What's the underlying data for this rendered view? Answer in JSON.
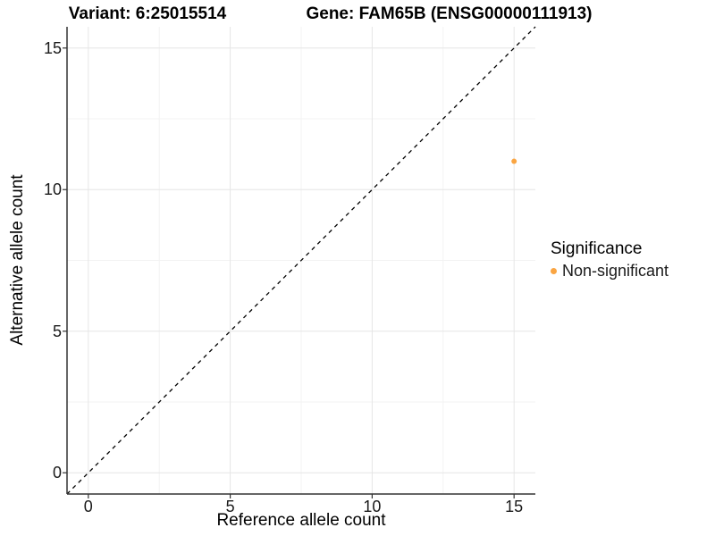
{
  "titles": {
    "variant": "Variant: 6:25015514",
    "gene": "Gene: FAM65B (ENSG00000111913)"
  },
  "axes": {
    "x": {
      "label": "Reference allele count",
      "tick_labels": [
        "0",
        "5",
        "10",
        "15"
      ]
    },
    "y": {
      "label": "Alternative allele count",
      "tick_labels": [
        "0",
        "5",
        "10",
        "15"
      ]
    }
  },
  "legend": {
    "title": "Significance",
    "items": [
      {
        "label": "Non-significant",
        "color": "#FAA542",
        "marker": "legend-point-icon"
      }
    ]
  },
  "colors": {
    "background": "#ffffff",
    "axis_line": "#333333",
    "tick_text": "#1a1a1a",
    "grid_major": "#e6e6e6",
    "grid_minor": "#f3f3f3",
    "reference_line": "#000000",
    "point_nonsignificant": "#FAA542"
  },
  "chart_data": {
    "type": "scatter",
    "title": "Variant: 6:25015514 — Gene: FAM65B (ENSG00000111913)",
    "xlabel": "Reference allele count",
    "ylabel": "Alternative allele count",
    "xlim": [
      -0.75,
      15.75
    ],
    "ylim": [
      -0.75,
      15.75
    ],
    "x_ticks": [
      0,
      5,
      10,
      15
    ],
    "y_ticks": [
      0,
      5,
      10,
      15
    ],
    "grid": "on",
    "minor_grid": "on",
    "legend_position": "right",
    "series": [
      {
        "name": "Non-significant",
        "color": "#FAA542",
        "points": [
          {
            "x": 15,
            "y": 11
          }
        ]
      }
    ],
    "reference_line": {
      "kind": "identity y=x",
      "style": "dashed",
      "color": "#000000"
    }
  }
}
